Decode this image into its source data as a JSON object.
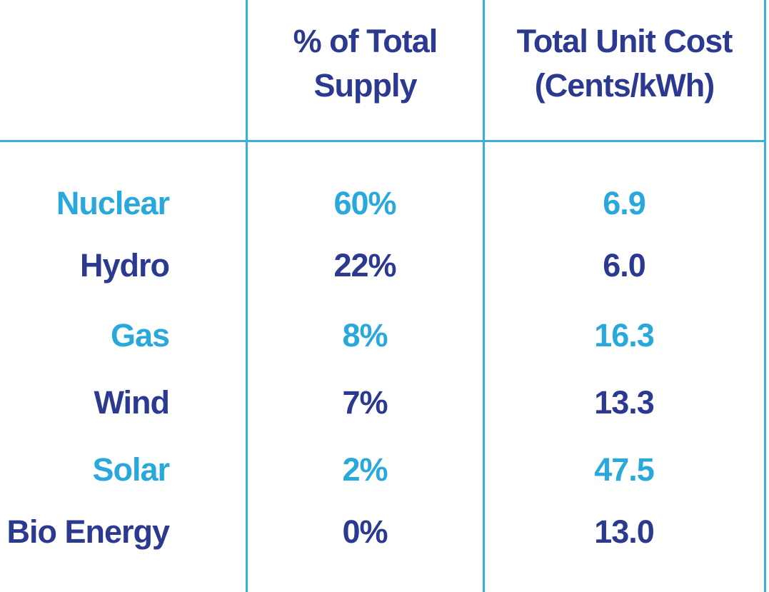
{
  "colors": {
    "cyan": "#29a8dc",
    "navy": "#2b3990",
    "grid": "#3aaedc",
    "background": "#ffffff"
  },
  "table": {
    "header": {
      "supply_line1": "% of Total",
      "supply_line2": "Supply",
      "cost_line1": "Total Unit Cost",
      "cost_line2": "(Cents/kWh)"
    }
  },
  "chart_data": {
    "type": "table",
    "title": "",
    "columns": [
      "",
      "% of Total Supply",
      "Total Unit Cost (Cents/kWh)"
    ],
    "rows": [
      {
        "label": "Nuclear",
        "supply_pct": "60%",
        "supply_value": 60,
        "unit_cost": 6.9,
        "color": "cyan"
      },
      {
        "label": "Hydro",
        "supply_pct": "22%",
        "supply_value": 22,
        "unit_cost": 6.0,
        "color": "navy"
      },
      {
        "label": "Gas",
        "supply_pct": "8%",
        "supply_value": 8,
        "unit_cost": 16.3,
        "color": "cyan"
      },
      {
        "label": "Wind",
        "supply_pct": "7%",
        "supply_value": 7,
        "unit_cost": 13.3,
        "color": "navy"
      },
      {
        "label": "Solar",
        "supply_pct": "2%",
        "supply_value": 2,
        "unit_cost": 47.5,
        "color": "cyan"
      },
      {
        "label": "Bio Energy",
        "supply_pct": "0%",
        "supply_value": 0,
        "unit_cost": 13.0,
        "color": "navy"
      }
    ],
    "cost_display": [
      "6.9",
      "6.0",
      "16.3",
      "13.3",
      "47.5",
      "13.0"
    ],
    "layout": {
      "grid": "partial",
      "legend": "none"
    }
  }
}
